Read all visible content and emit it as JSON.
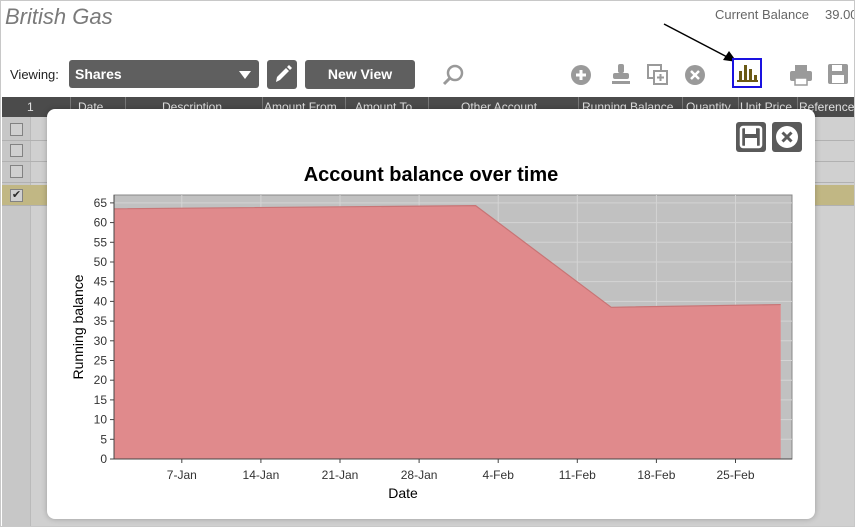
{
  "app": {
    "title": "British Gas",
    "balance_label": "Current Balance",
    "balance_value": "39.00"
  },
  "toolbar": {
    "viewing_label": "Viewing:",
    "view_selected": "Shares",
    "new_view_label": "New View",
    "icons": [
      "search-icon",
      "add-icon",
      "stamp-icon",
      "duplicate-icon",
      "delete-icon",
      "chart-icon",
      "print-icon",
      "save-icon"
    ]
  },
  "table": {
    "row_number_header": "1",
    "columns": [
      "Date",
      "Description",
      "Amount From",
      "Amount To",
      "Other Account",
      "Running Balance",
      "Quantity",
      "Unit Price",
      "Reference"
    ],
    "rows": [
      {
        "checked": false
      },
      {
        "checked": false
      },
      {
        "checked": false
      },
      {
        "checked": true
      }
    ]
  },
  "modal": {
    "save_icon": "save-icon",
    "close_icon": "close-icon"
  },
  "chart_data": {
    "type": "area",
    "title": "Account balance over time",
    "xlabel": "Date",
    "ylabel": "Running balance",
    "x_ticks": [
      "7-Jan",
      "14-Jan",
      "21-Jan",
      "28-Jan",
      "4-Feb",
      "11-Feb",
      "18-Feb",
      "25-Feb"
    ],
    "y_ticks": [
      0,
      5,
      10,
      15,
      20,
      25,
      30,
      35,
      40,
      45,
      50,
      55,
      60,
      65
    ],
    "ylim": [
      0,
      67
    ],
    "xlim_days": [
      0,
      60
    ],
    "series": [
      {
        "points": [
          {
            "x": "1-Jan",
            "y": 63.5
          },
          {
            "x": "2-Feb",
            "y": 64.3
          },
          {
            "x": "14-Feb",
            "y": 38.5
          },
          {
            "x": "1-Mar",
            "y": 39.2
          }
        ]
      }
    ],
    "colors": {
      "fill": "#e08a8c",
      "line": "#c87475",
      "background": "#c1c1c1"
    },
    "grid": true
  }
}
